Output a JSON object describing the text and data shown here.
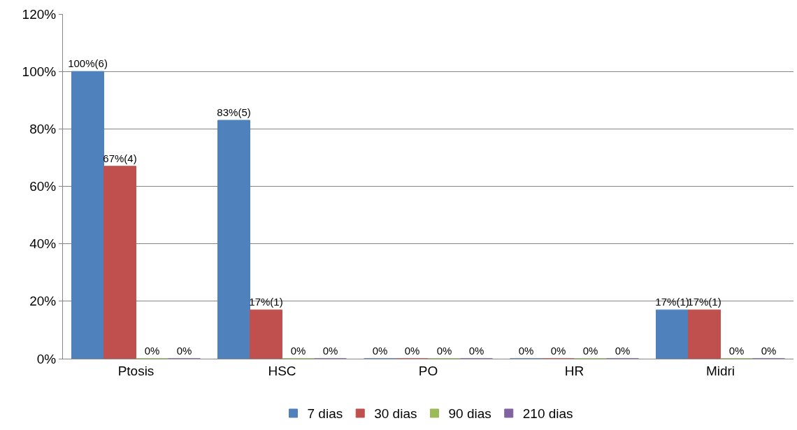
{
  "chart_data": {
    "type": "bar",
    "categories": [
      "Ptosis",
      "HSC",
      "PO",
      "HR",
      "Midri"
    ],
    "series": [
      {
        "name": "7 dias",
        "color": "#4f81bd",
        "values": [
          100,
          83,
          0,
          0,
          17
        ],
        "value_labels": [
          "100%(6)",
          "83%(5)",
          "0%",
          "0%",
          "17%(1)"
        ]
      },
      {
        "name": "30 dias",
        "color": "#c0504d",
        "values": [
          67,
          17,
          0,
          0,
          17
        ],
        "value_labels": [
          "67%(4)",
          "17%(1)",
          "0%",
          "0%",
          "17%(1)"
        ]
      },
      {
        "name": "90 dias",
        "color": "#9bbb59",
        "values": [
          0,
          0,
          0,
          0,
          0
        ],
        "value_labels": [
          "0%",
          "0%",
          "0%",
          "0%",
          "0%"
        ]
      },
      {
        "name": "210 dias",
        "color": "#8064a2",
        "values": [
          0,
          0,
          0,
          0,
          0
        ],
        "value_labels": [
          "0%",
          "0%",
          "0%",
          "0%",
          "0%"
        ]
      }
    ],
    "ylim": [
      0,
      120
    ],
    "yticks": [
      {
        "value": 0,
        "label": "0%"
      },
      {
        "value": 20,
        "label": "20%"
      },
      {
        "value": 40,
        "label": "40%"
      },
      {
        "value": 60,
        "label": "60%"
      },
      {
        "value": 80,
        "label": "80%"
      },
      {
        "value": 100,
        "label": "100%"
      },
      {
        "value": 120,
        "label": "120%"
      }
    ],
    "grid": "y",
    "legend": "bottom"
  }
}
